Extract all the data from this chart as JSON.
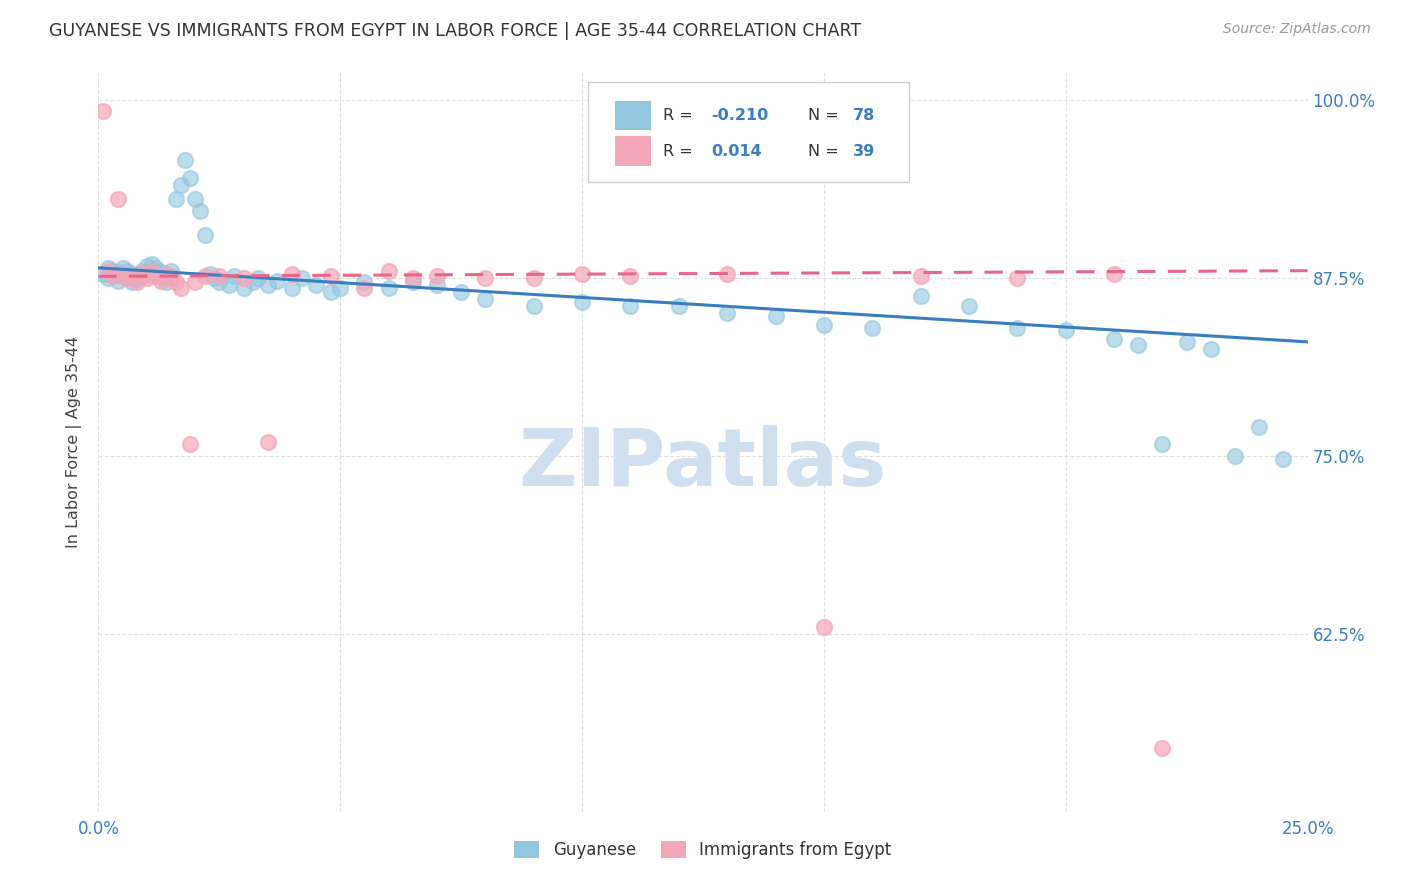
{
  "title": "GUYANESE VS IMMIGRANTS FROM EGYPT IN LABOR FORCE | AGE 35-44 CORRELATION CHART",
  "source_text": "Source: ZipAtlas.com",
  "ylabel": "In Labor Force | Age 35-44",
  "x_min": 0.0,
  "x_max": 0.25,
  "y_min": 0.5,
  "y_max": 1.02,
  "x_tick_pos": [
    0.0,
    0.05,
    0.1,
    0.15,
    0.2,
    0.25
  ],
  "x_tick_labels": [
    "0.0%",
    "",
    "",
    "",
    "",
    "25.0%"
  ],
  "y_tick_pos": [
    0.625,
    0.75,
    0.875,
    1.0
  ],
  "y_tick_labels": [
    "62.5%",
    "75.0%",
    "87.5%",
    "100.0%"
  ],
  "blue_color": "#92c5de",
  "pink_color": "#f4a6b8",
  "trend_blue_color": "#3a7ebf",
  "trend_pink_color": "#e8668a",
  "watermark_color": "#d0dff0",
  "grid_color": "#e0e0e0",
  "blue_r": "-0.210",
  "blue_n": "78",
  "pink_r": "0.014",
  "pink_n": "39",
  "blue_x": [
    0.001,
    0.002,
    0.002,
    0.003,
    0.003,
    0.004,
    0.004,
    0.005,
    0.005,
    0.005,
    0.006,
    0.006,
    0.007,
    0.007,
    0.008,
    0.008,
    0.009,
    0.009,
    0.01,
    0.01,
    0.011,
    0.011,
    0.012,
    0.012,
    0.013,
    0.013,
    0.014,
    0.014,
    0.015,
    0.015,
    0.016,
    0.017,
    0.018,
    0.019,
    0.02,
    0.021,
    0.022,
    0.023,
    0.024,
    0.025,
    0.027,
    0.028,
    0.03,
    0.032,
    0.033,
    0.035,
    0.037,
    0.04,
    0.042,
    0.045,
    0.048,
    0.05,
    0.055,
    0.06,
    0.065,
    0.07,
    0.075,
    0.08,
    0.09,
    0.1,
    0.11,
    0.12,
    0.13,
    0.14,
    0.15,
    0.16,
    0.17,
    0.18,
    0.19,
    0.2,
    0.21,
    0.215,
    0.22,
    0.225,
    0.23,
    0.235,
    0.24,
    0.245
  ],
  "blue_y": [
    0.878,
    0.875,
    0.882,
    0.876,
    0.88,
    0.873,
    0.879,
    0.876,
    0.882,
    0.878,
    0.875,
    0.88,
    0.872,
    0.878,
    0.876,
    0.874,
    0.88,
    0.876,
    0.883,
    0.877,
    0.885,
    0.88,
    0.878,
    0.882,
    0.876,
    0.879,
    0.875,
    0.872,
    0.88,
    0.876,
    0.93,
    0.94,
    0.958,
    0.945,
    0.93,
    0.922,
    0.905,
    0.878,
    0.875,
    0.872,
    0.87,
    0.876,
    0.868,
    0.872,
    0.875,
    0.87,
    0.873,
    0.868,
    0.875,
    0.87,
    0.865,
    0.868,
    0.872,
    0.868,
    0.872,
    0.87,
    0.865,
    0.86,
    0.855,
    0.858,
    0.855,
    0.855,
    0.85,
    0.848,
    0.842,
    0.84,
    0.862,
    0.855,
    0.84,
    0.838,
    0.832,
    0.828,
    0.758,
    0.83,
    0.825,
    0.75,
    0.77,
    0.748
  ],
  "pink_x": [
    0.001,
    0.002,
    0.003,
    0.004,
    0.005,
    0.006,
    0.007,
    0.008,
    0.009,
    0.01,
    0.011,
    0.012,
    0.013,
    0.014,
    0.015,
    0.016,
    0.017,
    0.019,
    0.02,
    0.022,
    0.025,
    0.03,
    0.035,
    0.04,
    0.048,
    0.055,
    0.06,
    0.065,
    0.07,
    0.08,
    0.09,
    0.1,
    0.11,
    0.13,
    0.15,
    0.17,
    0.19,
    0.21,
    0.22
  ],
  "pink_y": [
    0.992,
    0.88,
    0.876,
    0.93,
    0.878,
    0.875,
    0.876,
    0.872,
    0.878,
    0.875,
    0.88,
    0.876,
    0.873,
    0.878,
    0.875,
    0.872,
    0.868,
    0.758,
    0.872,
    0.876,
    0.876,
    0.875,
    0.76,
    0.878,
    0.876,
    0.868,
    0.88,
    0.875,
    0.876,
    0.875,
    0.875,
    0.878,
    0.876,
    0.878,
    0.63,
    0.876,
    0.875,
    0.878,
    0.545
  ]
}
